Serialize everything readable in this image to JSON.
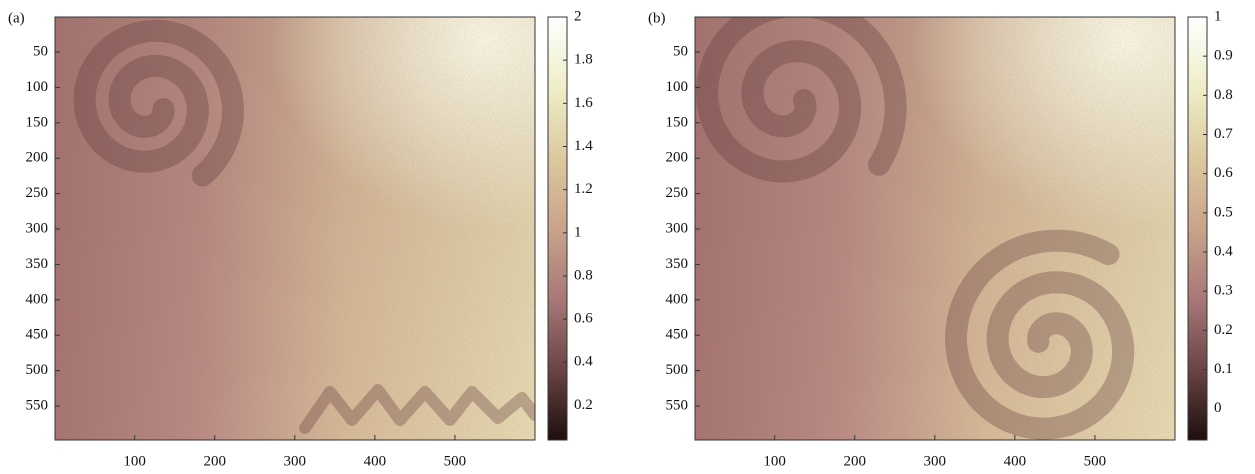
{
  "chart_data": [
    {
      "type": "image",
      "panel_label": "(a)",
      "xlim": [
        0.5,
        600
      ],
      "ylim": [
        0.5,
        598
      ],
      "y_reversed": true,
      "xticks": [
        100,
        200,
        300,
        400,
        500
      ],
      "yticks": [
        50,
        100,
        150,
        200,
        250,
        300,
        350,
        400,
        450,
        500,
        550
      ],
      "colorbar": {
        "clim": [
          0.04,
          2
        ],
        "ticks": [
          0.2,
          0.4,
          0.6,
          0.8,
          1,
          1.2,
          1.4,
          1.6,
          1.8,
          2
        ]
      },
      "colormap": [
        "#1e0f0f",
        "#6b4444",
        "#a87878",
        "#c9a38a",
        "#dcc9a0",
        "#eeeec8",
        "#ffffff"
      ]
    },
    {
      "type": "image",
      "panel_label": "(b)",
      "xlim": [
        0.5,
        600
      ],
      "ylim": [
        0.5,
        598
      ],
      "y_reversed": true,
      "xticks": [
        100,
        200,
        300,
        400,
        500
      ],
      "yticks": [
        50,
        100,
        150,
        200,
        250,
        300,
        350,
        400,
        450,
        500,
        550
      ],
      "colorbar": {
        "clim": [
          -0.08,
          1
        ],
        "ticks": [
          0,
          0.1,
          0.2,
          0.3,
          0.4,
          0.5,
          0.6,
          0.7,
          0.8,
          0.9,
          1
        ]
      },
      "colormap": [
        "#1e0f0f",
        "#6b4444",
        "#a87878",
        "#c9a38a",
        "#dcc9a0",
        "#eeeec8",
        "#ffffff"
      ]
    }
  ]
}
